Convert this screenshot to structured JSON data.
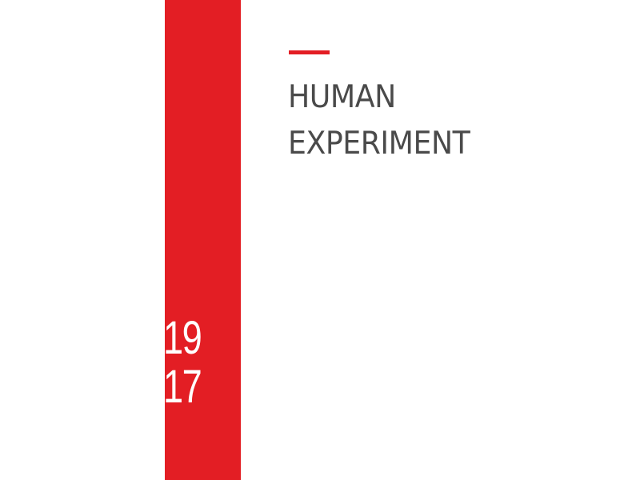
{
  "colors": {
    "accent": "#e31e24",
    "title_text": "#4a4a4a",
    "background": "#ffffff"
  },
  "year": {
    "top": "19",
    "bottom": "17"
  },
  "title": {
    "line1": "HUMAN",
    "line2": "EXPERIMENT"
  }
}
